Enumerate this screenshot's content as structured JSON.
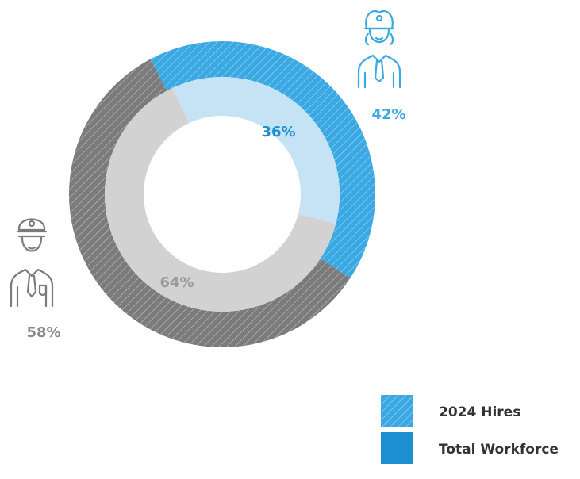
{
  "chart_data": {
    "type": "donut",
    "series": [
      {
        "name": "2024 Hires",
        "hatched": true,
        "color": "#3aa8e2",
        "colors": [
          "#3aa8e2",
          "#7b7b7b"
        ],
        "values": [
          42,
          58
        ],
        "value_labels": [
          "42%",
          "58%"
        ],
        "label_colors": [
          "#3aa8e2",
          "#8a8a8a"
        ]
      },
      {
        "name": "Total Workforce",
        "hatched": false,
        "color": "#1b8fcf",
        "colors": [
          "#c6e3f5",
          "#d2d2d2"
        ],
        "values": [
          36,
          64
        ],
        "value_labels": [
          "36%",
          "64%"
        ],
        "label_colors": [
          "#1b8fcf",
          "#9a9a9a"
        ]
      }
    ]
  }
}
